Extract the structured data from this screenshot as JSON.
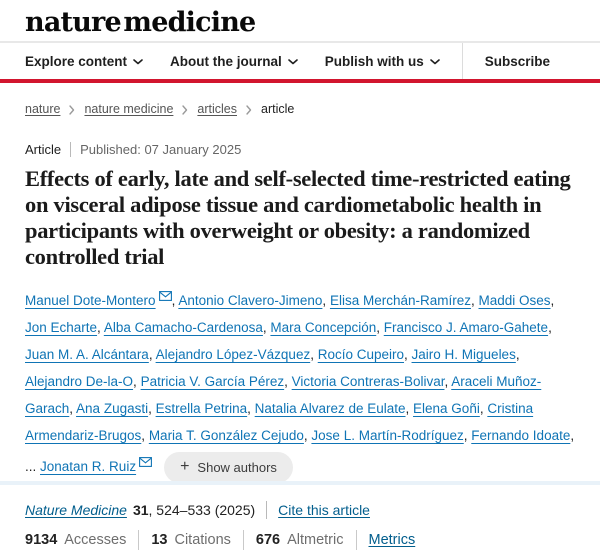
{
  "brand": {
    "logo_text": "nature medicine",
    "accent_red": "#d2152e",
    "link_blue": "#025e8d",
    "author_link_blue": "#0f74b5"
  },
  "nav": {
    "items": [
      {
        "label": "Explore content",
        "has_dropdown": true
      },
      {
        "label": "About the journal",
        "has_dropdown": true
      },
      {
        "label": "Publish with us",
        "has_dropdown": true
      }
    ],
    "subscribe_label": "Subscribe"
  },
  "breadcrumb": {
    "items": [
      {
        "label": "nature",
        "link": true
      },
      {
        "label": "nature medicine",
        "link": true
      },
      {
        "label": "articles",
        "link": true
      },
      {
        "label": "article",
        "link": false
      }
    ]
  },
  "article_meta": {
    "type_label": "Article",
    "published_label": "Published: 07 January 2025"
  },
  "title": "Effects of early, late and self-selected time-restricted eating on visceral adipose tissue and cardiometabolic health in participants with overweight or obesity: a randomized controlled trial",
  "authors": {
    "list": [
      {
        "name": "Manuel Dote-Montero",
        "envelope": true
      },
      {
        "name": "Antonio Clavero-Jimeno"
      },
      {
        "name": "Elisa Merchán-Ramírez"
      },
      {
        "name": "Maddi Oses"
      },
      {
        "name": "Jon Echarte"
      },
      {
        "name": "Alba Camacho-Cardenosa"
      },
      {
        "name": "Mara Concepción"
      },
      {
        "name": "Francisco J. Amaro-Gahete"
      },
      {
        "name": "Juan M. A. Alcántara"
      },
      {
        "name": "Alejandro López-Vázquez"
      },
      {
        "name": "Rocío Cupeiro"
      },
      {
        "name": "Jairo H. Migueles"
      },
      {
        "name": "Alejandro De-la-O"
      },
      {
        "name": "Patricia V. García Pérez"
      },
      {
        "name": "Victoria Contreras-Bolivar"
      },
      {
        "name": "Araceli Muñoz-Garach"
      },
      {
        "name": "Ana Zugasti"
      },
      {
        "name": "Estrella Petrina"
      },
      {
        "name": "Natalia Alvarez de Eulate"
      },
      {
        "name": "Elena Goñi"
      },
      {
        "name": "Cristina Armendariz-Brugos"
      },
      {
        "name": "Maria T. González Cejudo"
      },
      {
        "name": "Jose L. Martín-Rodríguez"
      },
      {
        "name": "Fernando Idoate"
      },
      {
        "name": "Jonatan R. Ruiz",
        "envelope": true,
        "prefix": "... "
      }
    ],
    "separator": ", ",
    "plus_icon": "+",
    "show_authors_label": "Show authors"
  },
  "citation": {
    "journal": "Nature Medicine",
    "volume": "31",
    "pages_suffix": ", 524–533 (2025)",
    "cite_link": "Cite this article"
  },
  "metrics": {
    "items": [
      {
        "value": "9134",
        "label": "Accesses"
      },
      {
        "value": "13",
        "label": "Citations"
      },
      {
        "value": "676",
        "label": "Altmetric"
      }
    ],
    "metrics_link": "Metrics"
  }
}
